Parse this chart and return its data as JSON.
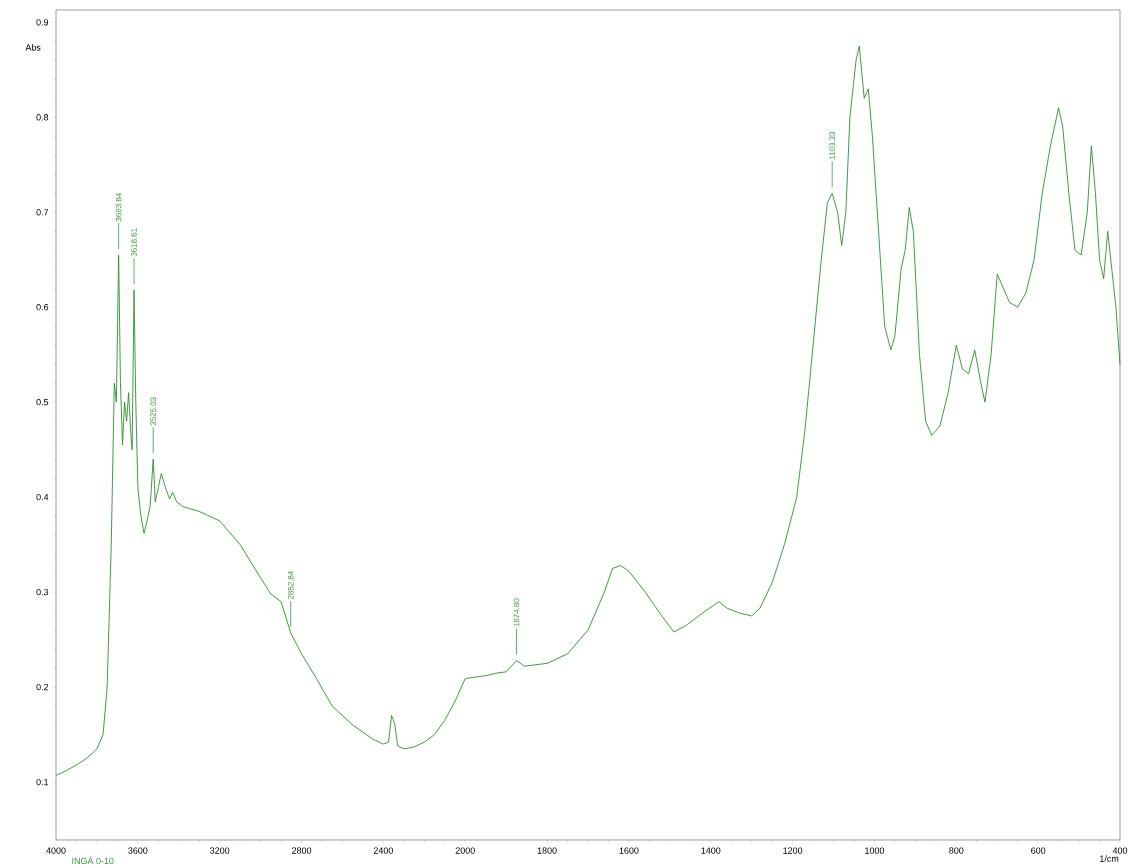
{
  "chart_data": [
    {
      "type": "line",
      "ylabel": "Abs",
      "x": [
        4000,
        3950,
        3900,
        3850,
        3800,
        3770,
        3750,
        3730,
        3715,
        3705,
        3693.84,
        3685,
        3675,
        3665,
        3655,
        3645,
        3635,
        3628,
        3618.61,
        3610,
        3600,
        3585,
        3570,
        3555,
        3540,
        3525.03,
        3515,
        3500,
        3485,
        3465,
        3445,
        3430,
        3410,
        3380,
        3300,
        3200,
        3100,
        3000,
        2950,
        2900,
        2852.84,
        2800,
        2730,
        2650,
        2550,
        2450,
        2420,
        2400,
        2375,
        2360,
        2345,
        2330,
        2300,
        2250,
        2200,
        2150,
        2100,
        2050,
        2000
      ],
      "series": [
        {
          "color": "#2f8f2f",
          "values": [
            0.107,
            0.112,
            0.118,
            0.125,
            0.135,
            0.15,
            0.2,
            0.35,
            0.52,
            0.5,
            0.655,
            0.52,
            0.455,
            0.5,
            0.48,
            0.51,
            0.47,
            0.45,
            0.618,
            0.5,
            0.41,
            0.38,
            0.362,
            0.375,
            0.39,
            0.44,
            0.395,
            0.41,
            0.425,
            0.41,
            0.398,
            0.405,
            0.395,
            0.39,
            0.385,
            0.375,
            0.35,
            0.315,
            0.298,
            0.29,
            0.257,
            0.235,
            0.21,
            0.18,
            0.16,
            0.145,
            0.142,
            0.14,
            0.142,
            0.17,
            0.162,
            0.138,
            0.135,
            0.137,
            0.142,
            0.15,
            0.165,
            0.185,
            0.209
          ]
        }
      ],
      "xlim": [
        4000,
        2000
      ],
      "ylim": [
        0.039,
        0.913
      ],
      "xticks": [
        4000,
        3600,
        3200,
        2800,
        2400,
        2000
      ],
      "yticks": [
        0.1,
        0.2,
        0.3,
        0.4,
        0.5,
        0.6,
        0.7,
        0.8,
        0.9
      ],
      "annotations": [
        "INGÁ 0-10",
        {
          "text": "3693.84",
          "x": 3693.84,
          "y": 0.655
        },
        {
          "text": "3618.61",
          "x": 3618.61,
          "y": 0.618
        },
        {
          "text": "3525.03",
          "x": 3525.03,
          "y": 0.44
        },
        {
          "text": "2852.84",
          "x": 2852.84,
          "y": 0.257
        }
      ],
      "grid": false
    },
    {
      "type": "line",
      "xlabel": "1/cm",
      "x": [
        2000,
        1950,
        1920,
        1900,
        1874.8,
        1855,
        1800,
        1750,
        1700,
        1660,
        1640,
        1620,
        1600,
        1560,
        1520,
        1490,
        1460,
        1420,
        1380,
        1360,
        1330,
        1300,
        1280,
        1250,
        1220,
        1190,
        1170,
        1150,
        1130,
        1115,
        1103.33,
        1090,
        1080,
        1070,
        1060,
        1045,
        1037,
        1025,
        1015,
        1005,
        990,
        975,
        960,
        950,
        935,
        925,
        915,
        905,
        890,
        875,
        860,
        840,
        820,
        800,
        785,
        770,
        755,
        740,
        730,
        715,
        700,
        690,
        670,
        650,
        630,
        610,
        590,
        570,
        550,
        540,
        525,
        510,
        495,
        480,
        470,
        460,
        450,
        440,
        430,
        420,
        410,
        400
      ],
      "series": [
        {
          "color": "#2f8f2f",
          "values": [
            0.209,
            0.212,
            0.215,
            0.216,
            0.228,
            0.222,
            0.225,
            0.235,
            0.26,
            0.3,
            0.325,
            0.328,
            0.322,
            0.3,
            0.275,
            0.258,
            0.265,
            0.278,
            0.29,
            0.283,
            0.278,
            0.275,
            0.283,
            0.31,
            0.35,
            0.4,
            0.47,
            0.56,
            0.65,
            0.71,
            0.72,
            0.7,
            0.665,
            0.7,
            0.8,
            0.86,
            0.875,
            0.82,
            0.83,
            0.78,
            0.68,
            0.58,
            0.555,
            0.57,
            0.64,
            0.66,
            0.705,
            0.68,
            0.55,
            0.48,
            0.465,
            0.475,
            0.51,
            0.56,
            0.535,
            0.53,
            0.555,
            0.52,
            0.5,
            0.55,
            0.635,
            0.625,
            0.605,
            0.6,
            0.615,
            0.65,
            0.72,
            0.77,
            0.81,
            0.79,
            0.72,
            0.66,
            0.655,
            0.7,
            0.77,
            0.72,
            0.65,
            0.63,
            0.68,
            0.64,
            0.6,
            0.54
          ]
        }
      ],
      "xlim": [
        2000,
        400
      ],
      "ylim": [
        0.039,
        0.913
      ],
      "xticks": [
        1800,
        1600,
        1400,
        1200,
        1000,
        800,
        600,
        400
      ],
      "tick_labels": "x",
      "annotations": [
        {
          "text": "1874.80",
          "x": 1874.8,
          "y": 0.228
        },
        {
          "text": "1103.33",
          "x": 1103.33,
          "y": 0.72
        }
      ],
      "grid": false
    }
  ]
}
